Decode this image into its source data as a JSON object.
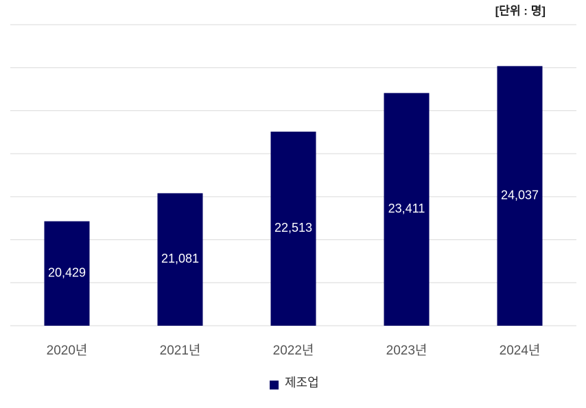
{
  "chart_data": {
    "type": "bar",
    "unit_label": "[단위 : 명]",
    "categories": [
      "2020년",
      "2021년",
      "2022년",
      "2023년",
      "2024년"
    ],
    "series": [
      {
        "name": "제조업",
        "color": "#000066",
        "values": [
          20429,
          21081,
          22513,
          23411,
          24037
        ],
        "value_labels": [
          "20,429",
          "21,081",
          "22,513",
          "23,411",
          "24,037"
        ]
      }
    ],
    "ylim": [
      18000,
      25000
    ],
    "yticks": [
      18000,
      19000,
      20000,
      21000,
      22000,
      23000,
      24000,
      25000
    ],
    "grid": true,
    "legend": "bottom"
  }
}
